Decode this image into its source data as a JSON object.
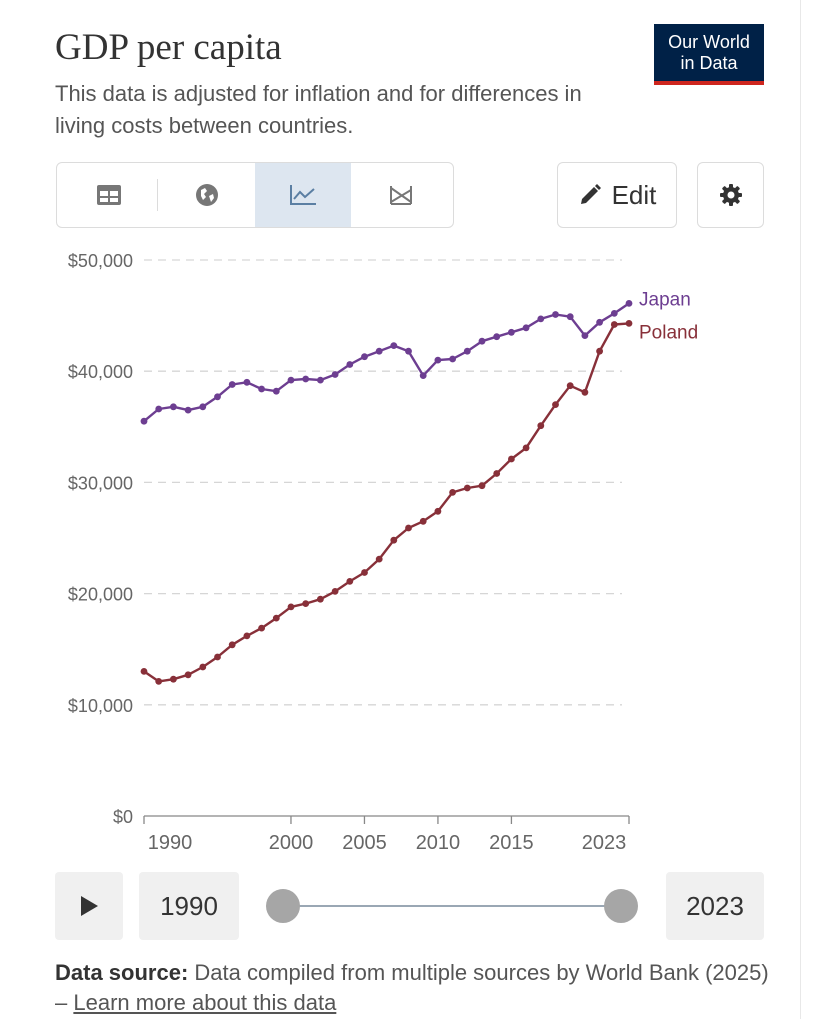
{
  "header": {
    "title": "GDP per capita",
    "subtitle": "This data is adjusted for inflation and for differences in living costs between countries.",
    "logo_line1": "Our World",
    "logo_line2": "in Data"
  },
  "toolbar": {
    "tabs": [
      {
        "name": "table",
        "icon": "table-icon"
      },
      {
        "name": "map",
        "icon": "globe-icon"
      },
      {
        "name": "chart",
        "icon": "line-chart-icon",
        "active": true
      },
      {
        "name": "marimekko",
        "icon": "slope-icon"
      }
    ],
    "edit_label": "Edit",
    "settings_icon": "gear-icon"
  },
  "timeline": {
    "start_year": "1990",
    "end_year": "2023",
    "play_icon": "play-icon"
  },
  "footer": {
    "source_label": "Data source:",
    "source_text": "Data compiled from multiple sources by World Bank (2025) –",
    "learn_more": "Learn more about this data"
  },
  "chart_data": {
    "type": "line",
    "ylim": [
      0,
      50000
    ],
    "xlim": [
      1990,
      2023
    ],
    "y_ticks": [
      {
        "value": 0,
        "label": "$0"
      },
      {
        "value": 10000,
        "label": "$10,000"
      },
      {
        "value": 20000,
        "label": "$20,000"
      },
      {
        "value": 30000,
        "label": "$30,000"
      },
      {
        "value": 40000,
        "label": "$40,000"
      },
      {
        "value": 50000,
        "label": "$50,000"
      }
    ],
    "x_ticks": [
      1990,
      2000,
      2005,
      2010,
      2015,
      2023
    ],
    "grid": true,
    "x": [
      1990,
      1991,
      1992,
      1993,
      1994,
      1995,
      1996,
      1997,
      1998,
      1999,
      2000,
      2001,
      2002,
      2003,
      2004,
      2005,
      2006,
      2007,
      2008,
      2009,
      2010,
      2011,
      2012,
      2013,
      2014,
      2015,
      2016,
      2017,
      2018,
      2019,
      2020,
      2021,
      2022,
      2023
    ],
    "series": [
      {
        "name": "Japan",
        "color": "#6d3e91",
        "values": [
          35500,
          36600,
          36800,
          36500,
          36800,
          37700,
          38800,
          39000,
          38400,
          38200,
          39200,
          39300,
          39200,
          39700,
          40600,
          41300,
          41800,
          42300,
          41800,
          39600,
          41000,
          41100,
          41800,
          42700,
          43100,
          43500,
          43900,
          44700,
          45100,
          44900,
          43200,
          44400,
          45200,
          46100
        ]
      },
      {
        "name": "Poland",
        "color": "#883039",
        "values": [
          13000,
          12100,
          12300,
          12700,
          13400,
          14300,
          15400,
          16200,
          16900,
          17800,
          18800,
          19100,
          19500,
          20200,
          21100,
          21900,
          23100,
          24800,
          25900,
          26500,
          27400,
          29100,
          29500,
          29700,
          30800,
          32100,
          33100,
          35100,
          37000,
          38700,
          38100,
          41800,
          44200,
          44300
        ]
      }
    ]
  }
}
